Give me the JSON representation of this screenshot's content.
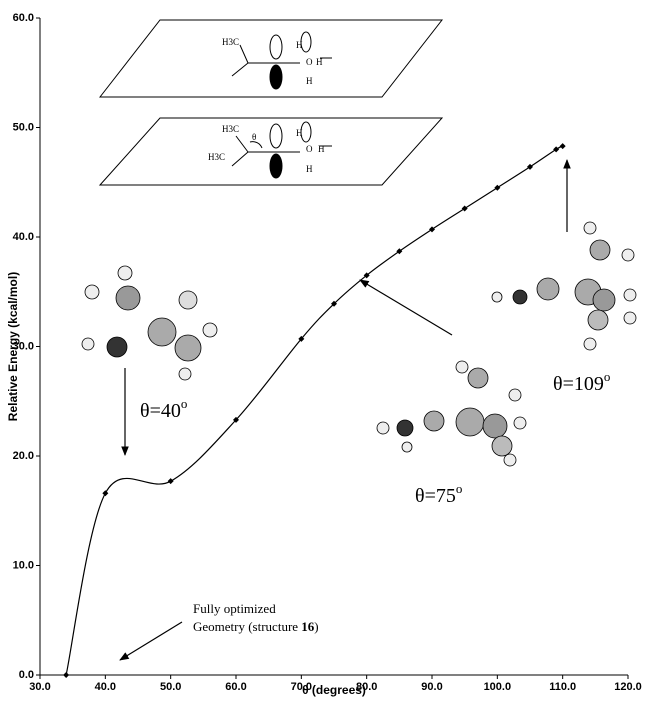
{
  "chart_data": {
    "type": "line",
    "x_label": "θ (degrees)",
    "y_label": "Relative Energy (kcal/mol)",
    "xlim": [
      30,
      120
    ],
    "ylim": [
      0,
      60
    ],
    "xticks": [
      {
        "value": 30,
        "label": "30.0"
      },
      {
        "value": 40,
        "label": "40.0"
      },
      {
        "value": 50,
        "label": "50.0"
      },
      {
        "value": 60,
        "label": "60.0"
      },
      {
        "value": 70,
        "label": "70.0"
      },
      {
        "value": 80,
        "label": "80.0"
      },
      {
        "value": 90,
        "label": "90.0"
      },
      {
        "value": 100,
        "label": "100.0"
      },
      {
        "value": 110,
        "label": "110.0"
      },
      {
        "value": 120,
        "label": "120.0"
      }
    ],
    "yticks": [
      {
        "value": 0,
        "label": "0.0"
      },
      {
        "value": 10,
        "label": "10.0"
      },
      {
        "value": 20,
        "label": "20.0"
      },
      {
        "value": 30,
        "label": "30.0"
      },
      {
        "value": 40,
        "label": "40.0"
      },
      {
        "value": 50,
        "label": "50.0"
      },
      {
        "value": 60,
        "label": "60.0"
      }
    ],
    "x": [
      34,
      40,
      50,
      60,
      70,
      75,
      80,
      85,
      90,
      95,
      100,
      105,
      109,
      110
    ],
    "values": [
      0,
      16.6,
      17.7,
      23.3,
      30.7,
      33.9,
      36.5,
      38.7,
      40.7,
      42.6,
      44.5,
      46.4,
      48.0,
      48.3
    ],
    "color": "#000000",
    "annotations": [
      {
        "text": "θ=40",
        "sup": "o"
      },
      {
        "text": "θ=75",
        "sup": "o"
      },
      {
        "text": "θ=109",
        "sup": "o"
      }
    ],
    "note": {
      "line1": "Fully optimized",
      "line2": "Geometry (structure ",
      "bold": "16",
      "end": ")"
    },
    "inset_labels": {
      "methyl": "H3C",
      "h": "H",
      "o": "O",
      "theta": "θ"
    }
  }
}
